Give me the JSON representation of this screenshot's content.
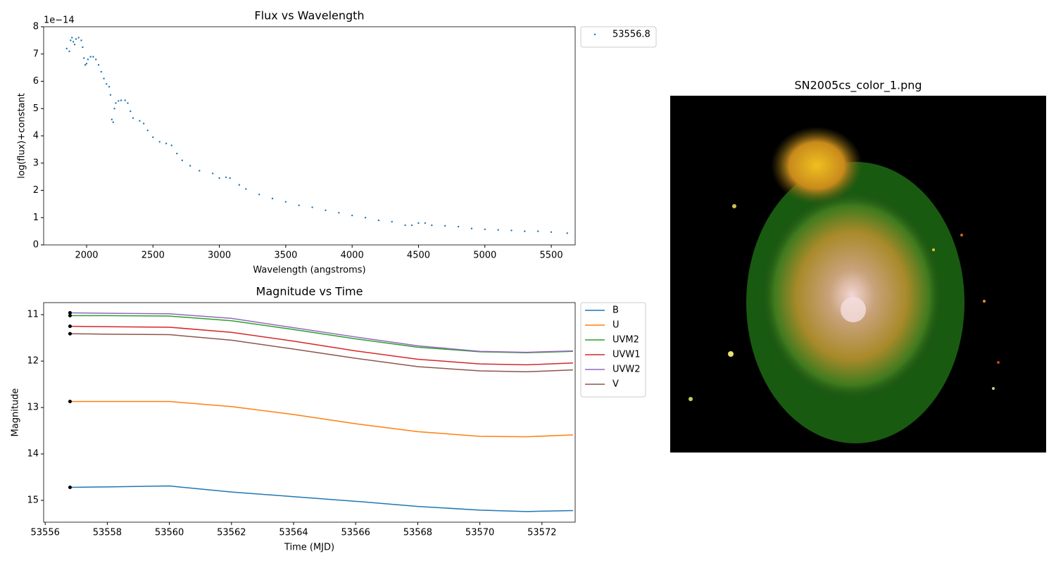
{
  "chart_data": [
    {
      "type": "scatter",
      "title": "Flux vs Wavelength",
      "x_label": "Wavelength (angstroms)",
      "y_label": "log(flux)+constant",
      "y_offset_label": "1e−14",
      "x": [
        1850,
        1870,
        1880,
        1890,
        1900,
        1910,
        1920,
        1940,
        1960,
        1970,
        1980,
        1990,
        2000,
        2010,
        2030,
        2050,
        2070,
        2090,
        2110,
        2130,
        2150,
        2170,
        2180,
        2190,
        2200,
        2210,
        2220,
        2240,
        2260,
        2290,
        2310,
        2330,
        2350,
        2400,
        2430,
        2460,
        2500,
        2550,
        2600,
        2640,
        2680,
        2720,
        2780,
        2850,
        2950,
        3000,
        3050,
        3080,
        3150,
        3200,
        3300,
        3400,
        3500,
        3600,
        3700,
        3800,
        3900,
        4000,
        4100,
        4200,
        4300,
        4400,
        4450,
        4500,
        4550,
        4600,
        4700,
        4800,
        4900,
        5000,
        5100,
        5200,
        5300,
        5400,
        5500,
        5620
      ],
      "series": [
        {
          "name": "53556.8",
          "color": "#1f77b4",
          "values": [
            7.2,
            7.1,
            7.5,
            7.6,
            7.45,
            7.35,
            7.55,
            7.6,
            7.5,
            7.25,
            6.85,
            6.6,
            6.65,
            6.8,
            6.9,
            6.9,
            6.8,
            6.6,
            6.35,
            6.1,
            5.9,
            5.8,
            5.5,
            4.6,
            4.5,
            5.0,
            5.2,
            5.28,
            5.3,
            5.3,
            5.2,
            4.9,
            4.65,
            4.55,
            4.45,
            4.2,
            3.95,
            3.78,
            3.72,
            3.65,
            3.35,
            3.1,
            2.9,
            2.72,
            2.62,
            2.45,
            2.48,
            2.45,
            2.2,
            2.05,
            1.85,
            1.7,
            1.58,
            1.45,
            1.38,
            1.27,
            1.18,
            1.08,
            1.0,
            0.9,
            0.85,
            0.72,
            0.72,
            0.8,
            0.8,
            0.72,
            0.7,
            0.67,
            0.6,
            0.57,
            0.55,
            0.53,
            0.5,
            0.5,
            0.47,
            0.43
          ]
        }
      ],
      "xlim": [
        1676.5,
        5680
      ],
      "xticks": [
        2000,
        2500,
        3000,
        3500,
        4000,
        4500,
        5000,
        5500
      ],
      "ylim": [
        0,
        8
      ],
      "yticks": [
        0,
        1,
        2,
        3,
        4,
        5,
        6,
        7,
        8
      ],
      "legend": "outside-upper-right"
    },
    {
      "type": "line",
      "title": "Magnitude vs Time",
      "x_label": "Time (MJD)",
      "y_label": "Magnitude",
      "x": [
        53556.8,
        53558,
        53560,
        53562,
        53564,
        53566,
        53568,
        53570,
        53571.5,
        53573
      ],
      "series": [
        {
          "name": "B",
          "color": "#1f77b4",
          "values": [
            14.72,
            14.71,
            14.69,
            14.82,
            14.92,
            15.02,
            15.13,
            15.21,
            15.24,
            15.22
          ]
        },
        {
          "name": "U",
          "color": "#ff7f0e",
          "values": [
            12.87,
            12.87,
            12.87,
            12.98,
            13.15,
            13.35,
            13.52,
            13.62,
            13.63,
            13.59
          ]
        },
        {
          "name": "UVM2",
          "color": "#2ca02c",
          "values": [
            11.02,
            11.02,
            11.03,
            11.13,
            11.32,
            11.52,
            11.7,
            11.8,
            11.82,
            11.79
          ]
        },
        {
          "name": "UVW1",
          "color": "#d62728",
          "values": [
            11.25,
            11.26,
            11.27,
            11.38,
            11.57,
            11.78,
            11.96,
            12.06,
            12.08,
            12.04
          ]
        },
        {
          "name": "UVW2",
          "color": "#9467bd",
          "values": [
            10.96,
            10.97,
            10.98,
            11.08,
            11.28,
            11.48,
            11.67,
            11.79,
            11.81,
            11.78
          ]
        },
        {
          "name": "V",
          "color": "#8c564b",
          "values": [
            11.41,
            11.42,
            11.43,
            11.55,
            11.74,
            11.94,
            12.12,
            12.21,
            12.23,
            12.19
          ]
        }
      ],
      "observed_color": "#000000",
      "xlim": [
        53555.95,
        53573.07
      ],
      "xticks": [
        53556,
        53558,
        53560,
        53562,
        53564,
        53566,
        53568,
        53570,
        53572
      ],
      "ylim": [
        10.74,
        15.47
      ],
      "yticks": [
        11,
        12,
        13,
        14,
        15
      ],
      "y_inverted": true,
      "legend": "outside-upper-right"
    }
  ],
  "image": {
    "title": "SN2005cs_color_1.png"
  }
}
